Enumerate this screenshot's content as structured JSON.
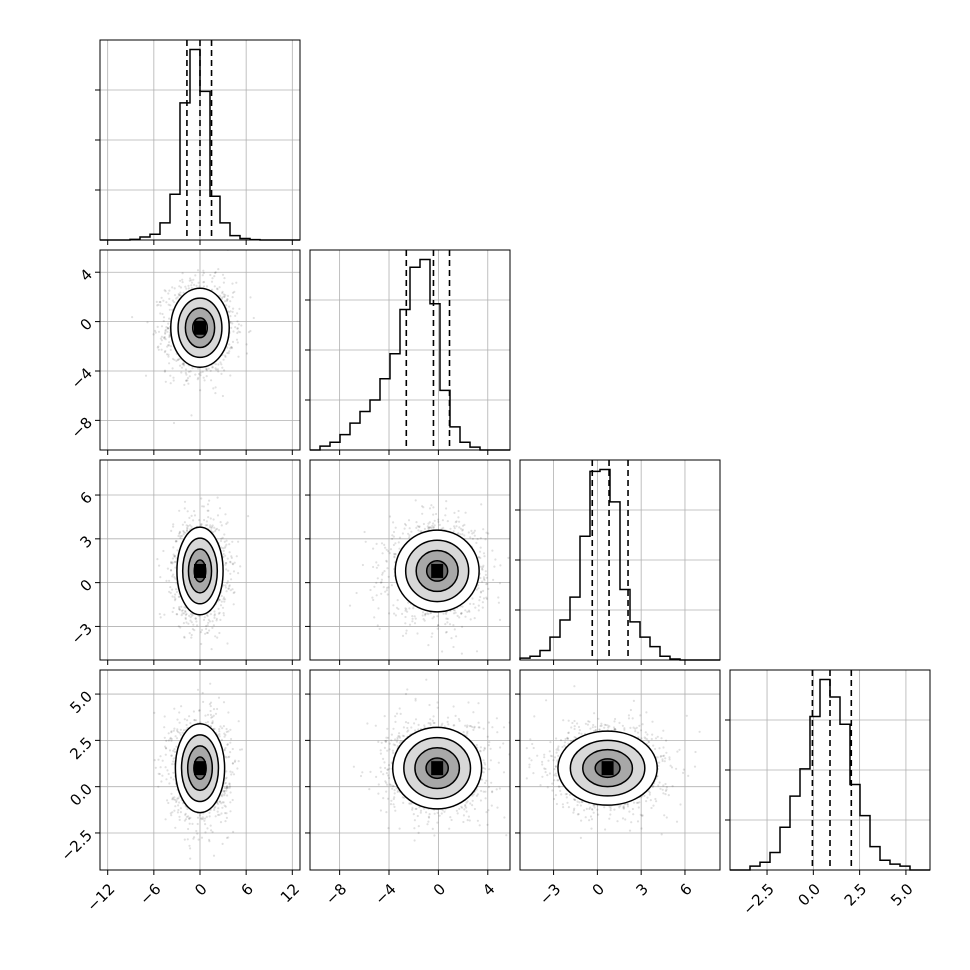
{
  "chart_data": {
    "type": "corner",
    "title": "",
    "grid": true,
    "legend": "none",
    "quantiles_lines": "dashed",
    "contour_levels": [
      0.5,
      1.0,
      1.5,
      2.0
    ],
    "parameters": [
      {
        "name": "",
        "range": [
          -13.0,
          13.0
        ],
        "ticks": [
          -12,
          -6,
          0,
          6,
          12
        ],
        "tick_labels": [
          "−12",
          "−6",
          "0",
          "6",
          "12"
        ],
        "quantiles": [
          -1.7,
          0.0,
          1.5
        ],
        "hist": {
          "bin_edges": [
            -13.0,
            -11.7,
            -10.4,
            -9.1,
            -7.8,
            -6.5,
            -5.2,
            -3.9,
            -2.6,
            -1.3,
            0.0,
            1.3,
            2.6,
            3.9,
            5.2,
            6.5,
            7.8,
            9.1,
            10.4,
            11.7,
            13.0
          ],
          "counts": [
            0,
            0,
            0,
            0.003,
            0.016,
            0.03,
            0.09,
            0.24,
            0.72,
            1.0,
            0.78,
            0.23,
            0.09,
            0.023,
            0.008,
            0.002,
            0,
            0,
            0,
            0
          ]
        }
      },
      {
        "name": "",
        "range": [
          -10.4,
          5.8
        ],
        "ticks": [
          -8,
          -4,
          0,
          4
        ],
        "tick_labels": [
          "−8",
          "−4",
          "0",
          "4"
        ],
        "quantiles": [
          -2.6,
          -0.4,
          0.9
        ],
        "hist": {
          "bin_edges": [
            -10.4,
            -9.59,
            -8.78,
            -7.97,
            -7.16,
            -6.35,
            -5.54,
            -4.73,
            -3.92,
            -3.11,
            -2.3,
            -1.49,
            -0.68,
            0.13,
            0.94,
            1.75,
            2.56,
            3.37,
            4.18,
            4.99,
            5.8
          ],
          "counts": [
            0,
            0.02,
            0.04,
            0.08,
            0.14,
            0.2,
            0.26,
            0.37,
            0.5,
            0.73,
            0.95,
            0.99,
            0.76,
            0.31,
            0.12,
            0.04,
            0.015,
            0,
            0,
            0
          ]
        }
      },
      {
        "name": "",
        "range": [
          -5.3,
          8.4
        ],
        "ticks": [
          -3,
          0,
          3,
          6
        ],
        "tick_labels": [
          "−3",
          "0",
          "3",
          "6"
        ],
        "quantiles": [
          -0.35,
          0.8,
          2.1
        ],
        "hist": {
          "bin_edges": [
            -5.3,
            -4.615,
            -3.93,
            -3.245,
            -2.56,
            -1.875,
            -1.19,
            -0.505,
            0.18,
            0.865,
            1.55,
            2.235,
            2.92,
            3.605,
            4.29,
            4.975,
            5.66,
            6.345,
            7.03,
            7.715,
            8.4
          ],
          "counts": [
            0.01,
            0.02,
            0.05,
            0.12,
            0.21,
            0.33,
            0.65,
            0.99,
            1.0,
            0.83,
            0.37,
            0.2,
            0.12,
            0.07,
            0.02,
            0.005,
            0,
            0,
            0,
            0
          ]
        }
      },
      {
        "name": "",
        "range": [
          -4.5,
          6.3
        ],
        "ticks": [
          -2.5,
          0.0,
          2.5,
          5.0
        ],
        "tick_labels": [
          "−2.5",
          "0.0",
          "2.5",
          "5.0"
        ],
        "quantiles": [
          -0.05,
          0.9,
          2.05
        ],
        "hist": {
          "bin_edges": [
            -4.5,
            -3.96,
            -3.42,
            -2.88,
            -2.34,
            -1.8,
            -1.26,
            -0.72,
            -0.18,
            0.36,
            0.9,
            1.44,
            1.98,
            2.52,
            3.06,
            3.6,
            4.14,
            4.68,
            5.22,
            5.76,
            6.3
          ],
          "counts": [
            0,
            0,
            0.02,
            0.04,
            0.09,
            0.22,
            0.38,
            0.52,
            0.79,
            0.98,
            0.89,
            0.75,
            0.44,
            0.28,
            0.12,
            0.05,
            0.03,
            0.02,
            0,
            0
          ]
        }
      }
    ],
    "pairs": [
      {
        "x_param": 0,
        "y_param": 1,
        "mean": [
          0.0,
          -0.5
        ],
        "sd": [
          1.9,
          1.6
        ]
      },
      {
        "x_param": 0,
        "y_param": 2,
        "mean": [
          0.0,
          0.8
        ],
        "sd": [
          1.5,
          1.5
        ]
      },
      {
        "x_param": 1,
        "y_param": 2,
        "mean": [
          -0.1,
          0.8
        ],
        "sd": [
          1.7,
          1.4
        ]
      },
      {
        "x_param": 0,
        "y_param": 3,
        "mean": [
          0.0,
          1.0
        ],
        "sd": [
          1.6,
          1.2
        ]
      },
      {
        "x_param": 1,
        "y_param": 3,
        "mean": [
          -0.1,
          1.0
        ],
        "sd": [
          1.8,
          1.1
        ]
      },
      {
        "x_param": 2,
        "y_param": 3,
        "mean": [
          0.7,
          1.0
        ],
        "sd": [
          1.7,
          1.0
        ]
      }
    ]
  }
}
